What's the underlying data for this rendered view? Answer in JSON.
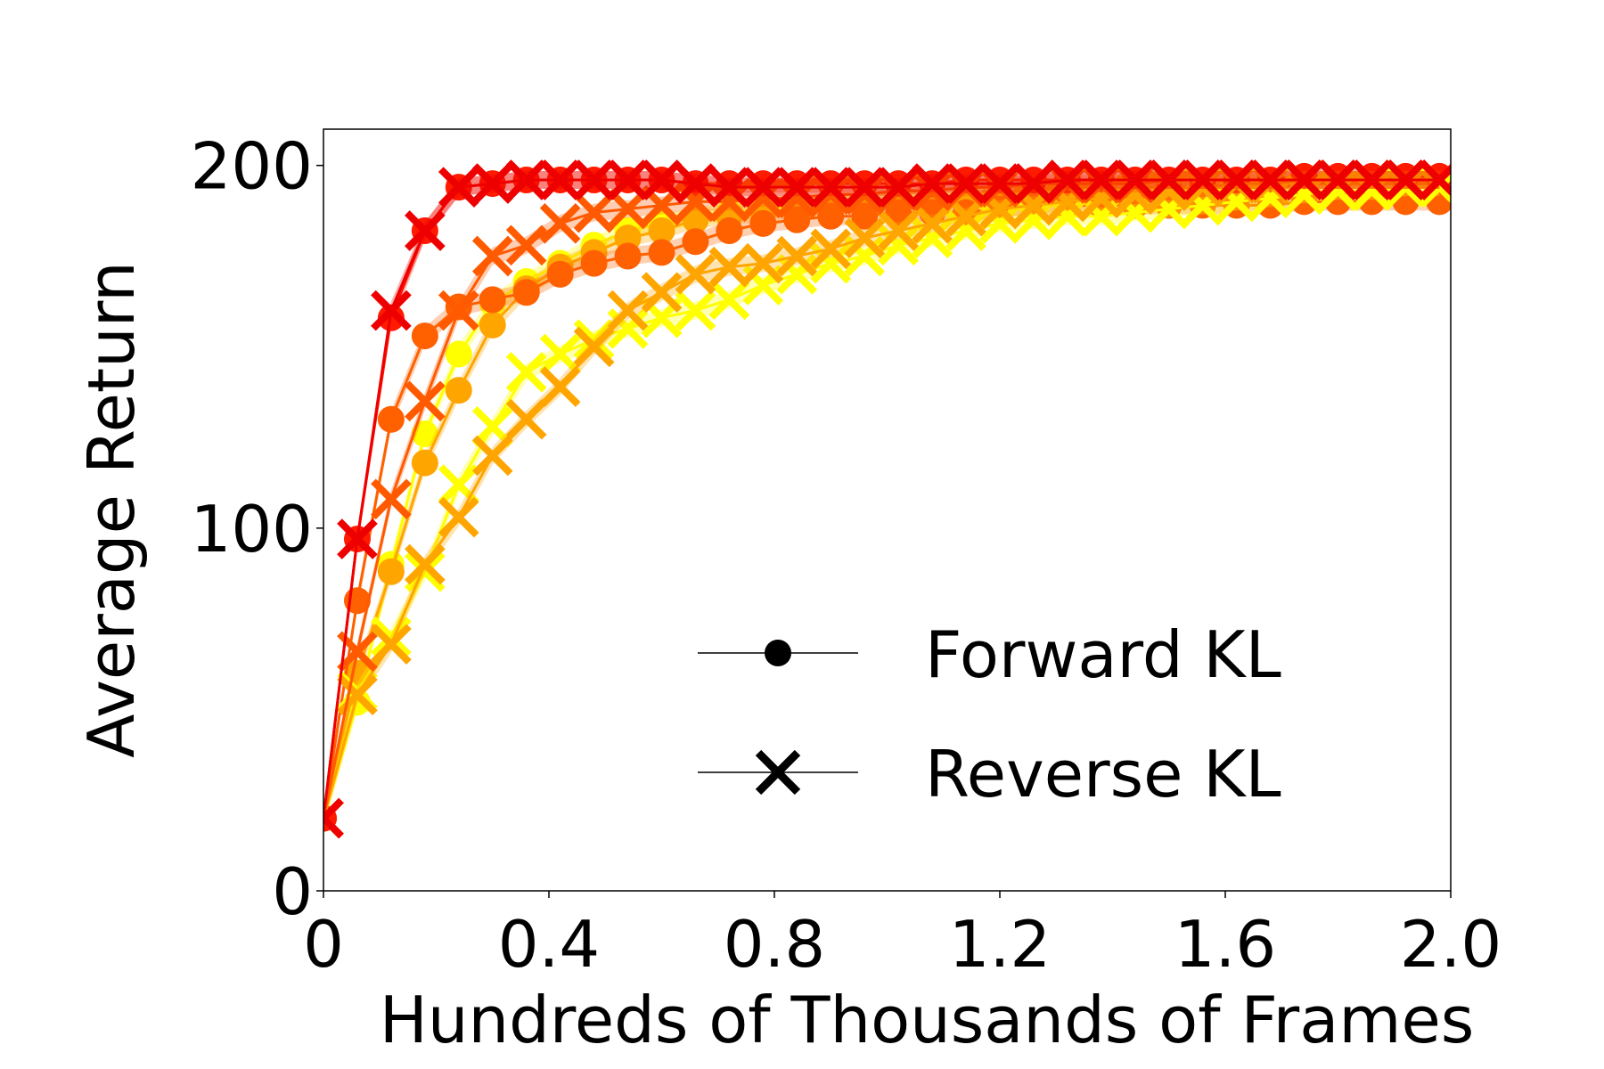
{
  "chart_data": {
    "type": "line",
    "title": "",
    "xlabel": "Hundreds of Thousands of Frames",
    "ylabel": "Average Return",
    "xlim": [
      0,
      2.0
    ],
    "ylim": [
      0,
      210
    ],
    "xticks": [
      {
        "value": 0,
        "label": "0"
      },
      {
        "value": 0.4,
        "label": "0.4"
      },
      {
        "value": 0.8,
        "label": "0.8"
      },
      {
        "value": 1.2,
        "label": "1.2"
      },
      {
        "value": 1.6,
        "label": "1.6"
      },
      {
        "value": 2.0,
        "label": "2.0"
      }
    ],
    "yticks": [
      {
        "value": 0,
        "label": "0"
      },
      {
        "value": 100,
        "label": "100"
      },
      {
        "value": 200,
        "label": "200"
      }
    ],
    "grid": false,
    "legend_position": "bottom-right",
    "legend": [
      {
        "label": "Forward KL",
        "marker": "circle"
      },
      {
        "label": "Reverse KL",
        "marker": "x"
      }
    ],
    "x": [
      0,
      0.06,
      0.12,
      0.18,
      0.24,
      0.3,
      0.36,
      0.42,
      0.48,
      0.54,
      0.6,
      0.66,
      0.72,
      0.78,
      0.84,
      0.9,
      0.96,
      1.02,
      1.08,
      1.14,
      1.2,
      1.26,
      1.32,
      1.38,
      1.44,
      1.5,
      1.56,
      1.62,
      1.68,
      1.74,
      1.8,
      1.86,
      1.92,
      1.98
    ],
    "series": [
      {
        "kl": "forward",
        "marker": "circle",
        "color": "#ffff00",
        "values": [
          20,
          52,
          90,
          126,
          148,
          162,
          168,
          173,
          178,
          182,
          184,
          186,
          187,
          188,
          189,
          190,
          190,
          191,
          191,
          192,
          192,
          193,
          193,
          193,
          194,
          194,
          194,
          195,
          195,
          195,
          195,
          196,
          196,
          196
        ]
      },
      {
        "kl": "forward",
        "marker": "circle",
        "color": "#ffa500",
        "values": [
          20,
          60,
          88,
          118,
          138,
          156,
          166,
          172,
          176,
          180,
          182,
          185,
          186,
          187,
          188,
          189,
          190,
          190,
          191,
          191,
          192,
          192,
          192,
          193,
          193,
          193,
          194,
          194,
          194,
          195,
          195,
          195,
          195,
          195
        ]
      },
      {
        "kl": "forward",
        "marker": "circle",
        "color": "#ff6000",
        "values": [
          20,
          80,
          130,
          153,
          161,
          163,
          165,
          170,
          173,
          175,
          176,
          179,
          182,
          184,
          185,
          186,
          186,
          187,
          187,
          187,
          188,
          189,
          189,
          189,
          189,
          189,
          189,
          189,
          189,
          190,
          190,
          190,
          190,
          190
        ]
      },
      {
        "kl": "forward",
        "marker": "circle",
        "color": "#ff1a00",
        "values": [
          20,
          97,
          158,
          182,
          194,
          195,
          196,
          196,
          196,
          196,
          196,
          195,
          195,
          195,
          195,
          195,
          195,
          195,
          195,
          196,
          196,
          196,
          196,
          196,
          196,
          196,
          196,
          196,
          196,
          197,
          197,
          197,
          197,
          197
        ]
      },
      {
        "kl": "reverse",
        "marker": "x",
        "color": "#ffff00",
        "values": [
          20,
          55,
          70,
          88,
          112,
          128,
          143,
          148,
          152,
          155,
          158,
          160,
          163,
          167,
          170,
          173,
          175,
          178,
          180,
          182,
          184,
          185,
          186,
          186,
          187,
          188,
          189,
          190,
          191,
          192,
          193,
          193,
          194,
          194
        ]
      },
      {
        "kl": "reverse",
        "marker": "x",
        "color": "#ffa500",
        "values": [
          20,
          54,
          68,
          90,
          103,
          120,
          130,
          139,
          150,
          160,
          165,
          170,
          172,
          173,
          175,
          177,
          180,
          182,
          184,
          186,
          188,
          189,
          190,
          191,
          192,
          193,
          194,
          195,
          195,
          196,
          196,
          196,
          196,
          196
        ]
      },
      {
        "kl": "reverse",
        "marker": "x",
        "color": "#ff5a00",
        "values": [
          20,
          66,
          108,
          135,
          160,
          175,
          178,
          184,
          187,
          188,
          189,
          190,
          190,
          191,
          191,
          192,
          192,
          193,
          193,
          194,
          194,
          195,
          195,
          195,
          195,
          196,
          196,
          196,
          196,
          196,
          196,
          196,
          196,
          196
        ]
      },
      {
        "kl": "reverse",
        "marker": "x",
        "color": "#ee0000",
        "values": [
          20,
          97,
          160,
          182,
          194,
          195,
          196,
          196,
          196,
          196,
          196,
          195,
          194,
          194,
          194,
          194,
          194,
          194,
          195,
          195,
          195,
          195,
          196,
          196,
          196,
          196,
          196,
          196,
          196,
          196,
          196,
          196,
          196,
          196
        ]
      }
    ]
  }
}
